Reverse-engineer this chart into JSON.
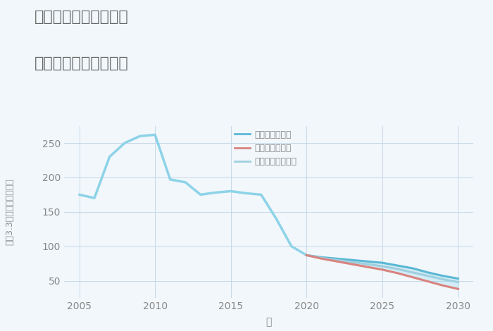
{
  "title_line1": "兵庫県高砂市曽根町の",
  "title_line2": "中古戸建ての価格推移",
  "xlabel": "年",
  "ylabel": "坪（3.3㎡）単価（万円）",
  "years_historical": [
    2005,
    2006,
    2007,
    2008,
    2009,
    2010,
    2011,
    2012,
    2013,
    2014,
    2015,
    2016,
    2017,
    2018,
    2019,
    2020
  ],
  "values_historical": [
    175,
    170,
    230,
    250,
    260,
    262,
    197,
    193,
    175,
    178,
    180,
    177,
    175,
    140,
    100,
    87
  ],
  "years_forecast": [
    2020,
    2021,
    2022,
    2023,
    2024,
    2025,
    2026,
    2027,
    2028,
    2029,
    2030
  ],
  "good_scenario": [
    87,
    84,
    82,
    80,
    78,
    76,
    72,
    68,
    62,
    57,
    53
  ],
  "normal_scenario": [
    87,
    83,
    80,
    77,
    74,
    71,
    67,
    62,
    57,
    52,
    48
  ],
  "bad_scenario": [
    87,
    82,
    78,
    74,
    70,
    66,
    61,
    55,
    49,
    43,
    38
  ],
  "color_historical": "#8dd3e8",
  "color_good": "#5ab8d5",
  "color_normal": "#9ecfdf",
  "color_bad": "#d9837f",
  "legend_good": "グッドシナリオ",
  "legend_bad": "バッドシナリオ",
  "legend_normal": "ノーマルシナリオ",
  "bg_color": "#f2f7fb",
  "grid_color": "#c5d8e8",
  "title_color": "#666666",
  "axis_color": "#888888",
  "ylim": [
    25,
    275
  ],
  "xlim": [
    2004,
    2031
  ],
  "yticks": [
    50,
    100,
    150,
    200,
    250
  ],
  "xticks": [
    2005,
    2010,
    2015,
    2020,
    2025,
    2030
  ]
}
